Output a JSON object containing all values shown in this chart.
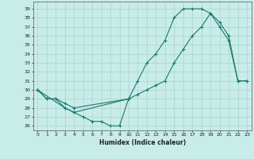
{
  "xlabel": "Humidex (Indice chaleur)",
  "bg_color": "#c8ece8",
  "line_color": "#1a7a6e",
  "grid_color": "#b0d8d2",
  "xlim": [
    -0.5,
    23.5
  ],
  "ylim": [
    25.5,
    39.8
  ],
  "yticks": [
    26,
    27,
    28,
    29,
    30,
    31,
    32,
    33,
    34,
    35,
    36,
    37,
    38,
    39
  ],
  "xticks": [
    0,
    1,
    2,
    3,
    4,
    5,
    6,
    7,
    8,
    9,
    10,
    11,
    12,
    13,
    14,
    15,
    16,
    17,
    18,
    19,
    20,
    21,
    22,
    23
  ],
  "curve1_x": [
    0,
    1,
    2,
    3,
    4,
    10,
    11,
    12,
    13,
    14,
    15,
    16,
    17,
    18,
    19,
    20,
    21,
    22,
    23
  ],
  "curve1_y": [
    30,
    29,
    29,
    28,
    27.5,
    29,
    31,
    33,
    34,
    35.5,
    38,
    39,
    39,
    39,
    38.5,
    37,
    35.5,
    31,
    31
  ],
  "curve2_x": [
    0,
    1,
    2,
    3,
    4,
    10,
    11,
    12,
    13,
    14,
    15,
    16,
    17,
    18,
    19,
    20,
    21,
    22,
    23
  ],
  "curve2_y": [
    30,
    29,
    29,
    28.5,
    28,
    29,
    29.5,
    30,
    30.5,
    31,
    33,
    34.5,
    36,
    37,
    38.5,
    37.5,
    36,
    31,
    31
  ],
  "curve3_x": [
    0,
    3,
    4,
    5,
    6,
    7,
    8,
    9,
    10
  ],
  "curve3_y": [
    30,
    28,
    27.5,
    27,
    26.5,
    26.5,
    26,
    26,
    29
  ]
}
